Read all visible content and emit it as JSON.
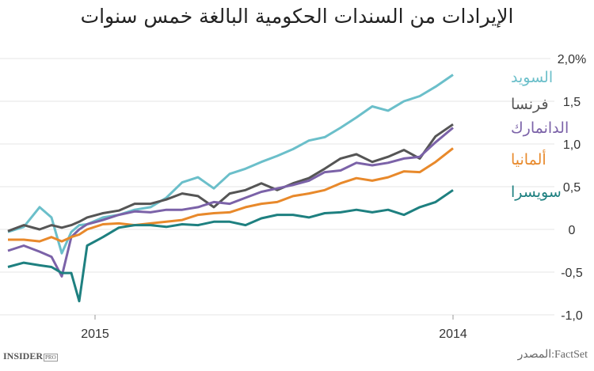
{
  "chart_data": {
    "type": "line",
    "title": "الإيرادات من السندات الحكومية البالغة خمس سنوات",
    "xlabel": "",
    "ylabel": "",
    "ylim": [
      -1.0,
      2.0
    ],
    "y_ticks": [
      "2,0%",
      "1,5",
      "1,0",
      "0,5",
      "0",
      "-0,5",
      "-1,0"
    ],
    "x_ticks": [
      "2015",
      "2014"
    ],
    "grid": true,
    "legend": "right, inline at line ends",
    "series": [
      {
        "name": "السويد",
        "color": "#6bbfca",
        "values": [
          -0.03,
          0.03,
          0.26,
          0.14,
          -0.28,
          -0.03,
          0.05,
          0.06,
          0.14,
          0.17,
          0.23,
          0.26,
          0.37,
          0.55,
          0.61,
          0.48,
          0.65,
          0.71,
          0.79,
          0.86,
          0.94,
          1.04,
          1.08,
          1.19,
          1.31,
          1.44,
          1.39,
          1.5,
          1.56,
          1.67,
          1.81
        ]
      },
      {
        "name": "فرنسا",
        "color": "#555555",
        "values": [
          -0.02,
          0.05,
          0.0,
          0.05,
          0.02,
          0.05,
          0.09,
          0.14,
          0.19,
          0.22,
          0.3,
          0.3,
          0.35,
          0.42,
          0.39,
          0.26,
          0.42,
          0.46,
          0.54,
          0.46,
          0.54,
          0.6,
          0.71,
          0.83,
          0.88,
          0.79,
          0.85,
          0.93,
          0.83,
          1.09,
          1.23
        ]
      },
      {
        "name": "الدانمارك",
        "color": "#7b62a8",
        "values": [
          -0.25,
          -0.19,
          -0.26,
          -0.32,
          -0.55,
          -0.09,
          0.0,
          0.06,
          0.11,
          0.17,
          0.21,
          0.2,
          0.23,
          0.23,
          0.26,
          0.32,
          0.3,
          0.37,
          0.44,
          0.48,
          0.52,
          0.57,
          0.67,
          0.69,
          0.78,
          0.75,
          0.78,
          0.83,
          0.85,
          1.02,
          1.19
        ]
      },
      {
        "name": "ألمانيا",
        "color": "#e8892b",
        "values": [
          -0.12,
          -0.12,
          -0.14,
          -0.09,
          -0.14,
          -0.09,
          -0.06,
          0.0,
          0.06,
          0.07,
          0.05,
          0.07,
          0.09,
          0.11,
          0.17,
          0.19,
          0.2,
          0.26,
          0.3,
          0.32,
          0.39,
          0.42,
          0.46,
          0.54,
          0.6,
          0.57,
          0.61,
          0.68,
          0.67,
          0.79,
          0.95
        ]
      },
      {
        "name": "سويسرا",
        "color": "#1e8080",
        "values": [
          -0.44,
          -0.39,
          -0.42,
          -0.44,
          -0.51,
          -0.51,
          -0.84,
          -0.19,
          -0.09,
          0.02,
          0.05,
          0.05,
          0.03,
          0.06,
          0.05,
          0.09,
          0.09,
          0.05,
          0.13,
          0.17,
          0.17,
          0.14,
          0.19,
          0.2,
          0.23,
          0.2,
          0.23,
          0.17,
          0.26,
          0.32,
          0.46
        ]
      }
    ]
  },
  "footer": {
    "logo": "INSIDER",
    "logo_badge": "PRO",
    "source": "المصدر:FactSet"
  }
}
